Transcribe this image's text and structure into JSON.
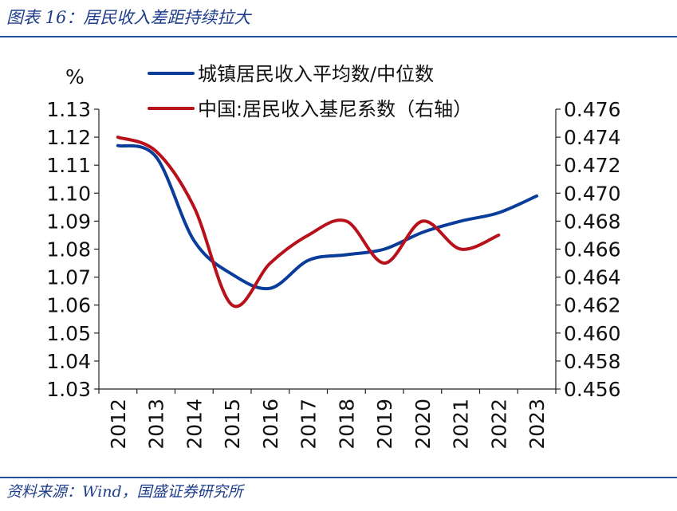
{
  "header": {
    "title": "图表 16：居民收入差距持续拉大"
  },
  "footer": {
    "source": "资料来源：Wind，国盛证券研究所"
  },
  "chart_data": {
    "type": "line",
    "x": [
      "2012",
      "2013",
      "2014",
      "2015",
      "2016",
      "2017",
      "2018",
      "2019",
      "2020",
      "2021",
      "2022",
      "2023"
    ],
    "ylabel": "%",
    "ylim": [
      1.03,
      1.13
    ],
    "yticks": [
      "1.03",
      "1.04",
      "1.05",
      "1.06",
      "1.07",
      "1.08",
      "1.09",
      "1.10",
      "1.11",
      "1.12",
      "1.13"
    ],
    "y2lim": [
      0.456,
      0.476
    ],
    "y2ticks": [
      "0.456",
      "0.458",
      "0.460",
      "0.462",
      "0.464",
      "0.466",
      "0.468",
      "0.470",
      "0.472",
      "0.474",
      "0.476"
    ],
    "legend_position": "top",
    "grid": false,
    "series": [
      {
        "name": "城镇居民收入平均数/中位数",
        "axis": "left",
        "color": "#0a3d9a",
        "values": [
          1.117,
          1.113,
          1.083,
          1.071,
          1.066,
          1.076,
          1.078,
          1.08,
          1.086,
          1.09,
          1.093,
          1.099
        ]
      },
      {
        "name": "中国:居民收入基尼系数（右轴）",
        "axis": "right",
        "color": "#b8111b",
        "values": [
          0.474,
          0.473,
          0.469,
          0.462,
          0.465,
          0.467,
          0.468,
          0.465,
          0.468,
          0.466,
          0.467,
          null
        ]
      }
    ]
  }
}
